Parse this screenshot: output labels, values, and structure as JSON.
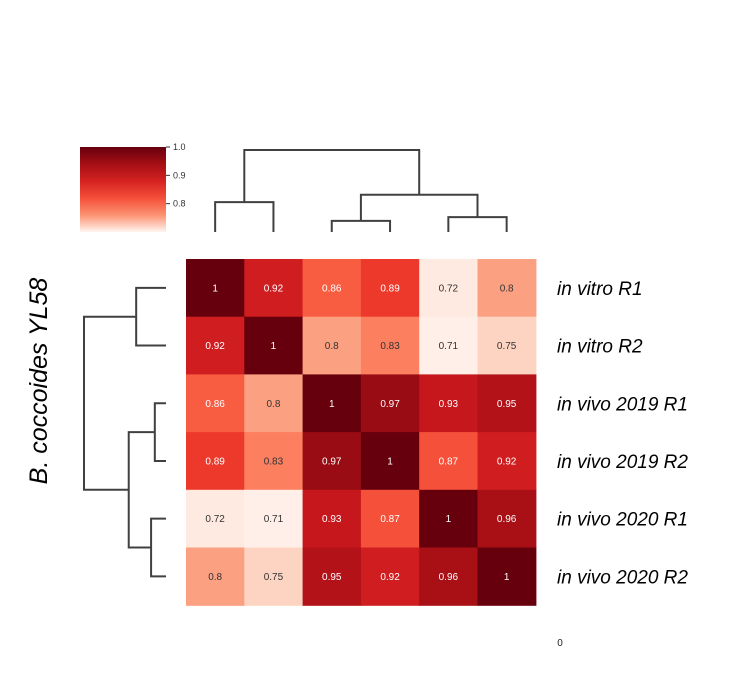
{
  "chart_data": {
    "type": "heatmap",
    "title": "",
    "ylabel": "B. coccoides YL58",
    "row_labels": [
      "in vitro R1",
      "in vitro R2",
      "in vivo 2019 R1",
      "in vivo 2019 R2",
      "in vivo 2020 R1",
      "in vivo 2020 R2"
    ],
    "values": [
      [
        1,
        0.92,
        0.86,
        0.89,
        0.72,
        0.8
      ],
      [
        0.92,
        1,
        0.8,
        0.83,
        0.71,
        0.75
      ],
      [
        0.86,
        0.8,
        1,
        0.97,
        0.93,
        0.95
      ],
      [
        0.89,
        0.83,
        0.97,
        1,
        0.87,
        0.92
      ],
      [
        0.72,
        0.71,
        0.93,
        0.87,
        1,
        0.96
      ],
      [
        0.8,
        0.75,
        0.95,
        0.92,
        0.96,
        1
      ]
    ],
    "colorbar": {
      "ticks": [
        "1.0",
        "0.9",
        "0.8"
      ],
      "tick_values": [
        1.0,
        0.9,
        0.8
      ],
      "vmin": 0.7,
      "vmax": 1.0,
      "colormap": "Reds",
      "placement": "top-left"
    },
    "dendrogram": {
      "placement": [
        "top",
        "left"
      ],
      "merges": [
        [
          2,
          3
        ],
        [
          4,
          5
        ],
        [
          0,
          1
        ],
        [
          6,
          7
        ],
        [
          8,
          9
        ]
      ],
      "merge_levels": [
        0.03,
        0.04,
        0.08,
        0.1,
        0.22
      ]
    },
    "stray_text": "0"
  }
}
